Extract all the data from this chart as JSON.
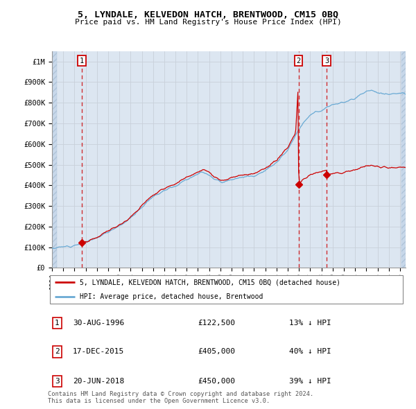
{
  "title": "5, LYNDALE, KELVEDON HATCH, BRENTWOOD, CM15 0BQ",
  "subtitle": "Price paid vs. HM Land Registry's House Price Index (HPI)",
  "xlim_start": 1994.0,
  "xlim_end": 2025.5,
  "ylim": [
    0,
    1050000
  ],
  "yticks": [
    0,
    100000,
    200000,
    300000,
    400000,
    500000,
    600000,
    700000,
    800000,
    900000,
    1000000
  ],
  "ytick_labels": [
    "£0",
    "£100K",
    "£200K",
    "£300K",
    "£400K",
    "£500K",
    "£600K",
    "£700K",
    "£800K",
    "£900K",
    "£1M"
  ],
  "hpi_color": "#6aaad4",
  "price_color": "#cc0000",
  "transactions": [
    {
      "date": 1996.66,
      "price": 122500,
      "label": "1"
    },
    {
      "date": 2015.96,
      "price": 405000,
      "label": "2"
    },
    {
      "date": 2018.47,
      "price": 450000,
      "label": "3"
    }
  ],
  "legend_entries": [
    "5, LYNDALE, KELVEDON HATCH, BRENTWOOD, CM15 0BQ (detached house)",
    "HPI: Average price, detached house, Brentwood"
  ],
  "table_rows": [
    {
      "num": "1",
      "date": "30-AUG-1996",
      "price": "£122,500",
      "pct": "13% ↓ HPI"
    },
    {
      "num": "2",
      "date": "17-DEC-2015",
      "price": "£405,000",
      "pct": "40% ↓ HPI"
    },
    {
      "num": "3",
      "date": "20-JUN-2018",
      "price": "£450,000",
      "pct": "39% ↓ HPI"
    }
  ],
  "footnote": "Contains HM Land Registry data © Crown copyright and database right 2024.\nThis data is licensed under the Open Government Licence v3.0.",
  "bg_color": "#dce6f1",
  "hatch_color": "#c8d8ea"
}
